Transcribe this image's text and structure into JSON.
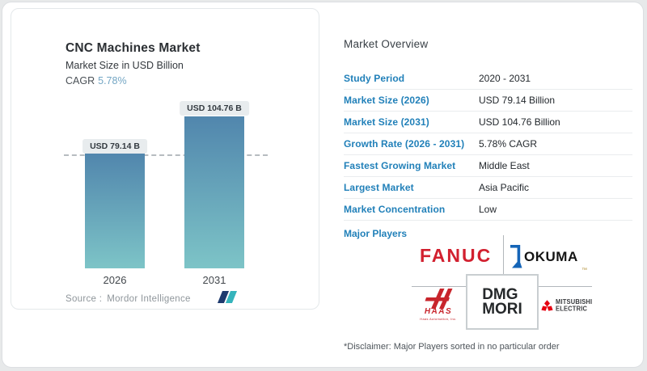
{
  "left_panel": {
    "title": "CNC Machines Market",
    "subtitle": "Market Size in USD Billion",
    "cagr_label": "CAGR",
    "cagr_value": "5.78%",
    "source_label": "Source :",
    "source_value": "Mordor Intelligence"
  },
  "chart_data": {
    "type": "bar",
    "title": "CNC Machines Market",
    "subtitle": "Market Size in USD Billion",
    "unit": "USD Billion",
    "categories": [
      "2026",
      "2031"
    ],
    "values": [
      79.14,
      104.76
    ],
    "value_labels": [
      "USD 79.14 B",
      "USD 104.76 B"
    ],
    "ylim": [
      0,
      104.76
    ],
    "grid": false,
    "reference_line": {
      "y": 79.14,
      "style": "dashed"
    },
    "bar_gradient_top": "#5186ad",
    "bar_gradient_bottom": "#7dc4c7"
  },
  "overview": {
    "title": "Market Overview",
    "rows": [
      {
        "label": "Study Period",
        "value": "2020 - 2031"
      },
      {
        "label": "Market Size (2026)",
        "value": "USD 79.14 Billion"
      },
      {
        "label": "Market Size (2031)",
        "value": "USD 104.76 Billion"
      },
      {
        "label": "Growth Rate (2026 - 2031)",
        "value": "5.78% CAGR"
      },
      {
        "label": "Fastest Growing Market",
        "value": "Middle East"
      },
      {
        "label": "Largest Market",
        "value": "Asia Pacific"
      },
      {
        "label": "Market Concentration",
        "value": "Low"
      }
    ],
    "major_players_label": "Major Players",
    "players": [
      {
        "name": "FANUC",
        "text": "FANUC"
      },
      {
        "name": "OKUMA",
        "text": "OKUMA",
        "tm": "™"
      },
      {
        "name": "DMG MORI",
        "line1": "DMG",
        "line2": "MORI"
      },
      {
        "name": "HAAS",
        "text": "HAAS",
        "subtext": "Haas Automation, Inc."
      },
      {
        "name": "MITSUBISHI ELECTRIC",
        "line1": "MITSUBISHI",
        "line2": "ELECTRIC"
      }
    ],
    "disclaimer": "*Disclaimer: Major Players sorted in no particular order"
  },
  "colors": {
    "accent_blue": "#2180b9",
    "cagr_value_blue": "#74a6c4",
    "bar_gradient_top": "#5186ad",
    "bar_gradient_bottom": "#7dc4c7",
    "pill_background": "#e8ecee",
    "fanuc_red": "#d2202f",
    "okuma_blue": "#1565b8",
    "haas_red": "#c8252c",
    "mitsubishi_red": "#e60012",
    "mordor_navy": "#1e3a6e",
    "mordor_teal": "#35b4bc"
  }
}
